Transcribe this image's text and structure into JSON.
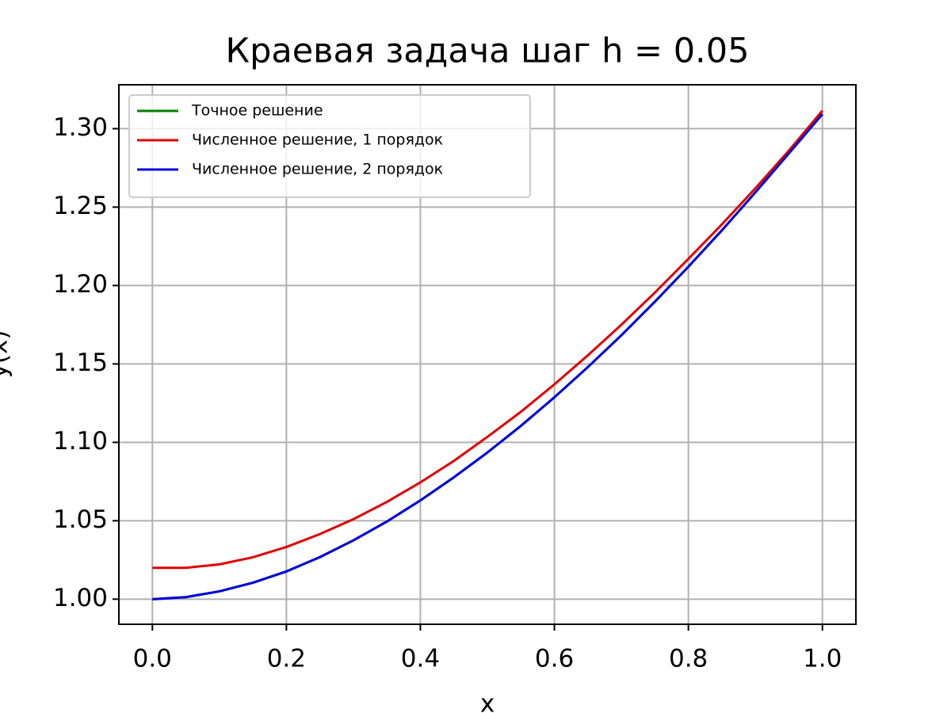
{
  "chart_data": {
    "type": "line",
    "title": "Краевая задача шаг h = 0.05",
    "xlabel": "x",
    "ylabel": "y(x)",
    "x": [
      0,
      0.05,
      0.1,
      0.15,
      0.2,
      0.25,
      0.3,
      0.35,
      0.4,
      0.45,
      0.5,
      0.55,
      0.6,
      0.65,
      0.7,
      0.75,
      0.8,
      0.85,
      0.9,
      0.95,
      1.0
    ],
    "series": [
      {
        "name": "Точное решение",
        "color": "#008000",
        "values": [
          1.0,
          1.0013,
          1.005,
          1.0105,
          1.0177,
          1.0268,
          1.0375,
          1.0495,
          1.063,
          1.0777,
          1.0935,
          1.1105,
          1.1287,
          1.148,
          1.1683,
          1.1897,
          1.212,
          1.2352,
          1.2594,
          1.2843,
          1.3093
        ]
      },
      {
        "name": "Численное решение, 1 порядок",
        "color": "#e00000",
        "values": [
          1.02,
          1.02,
          1.0222,
          1.0267,
          1.0333,
          1.0415,
          1.051,
          1.062,
          1.0745,
          1.0882,
          1.1035,
          1.1195,
          1.137,
          1.1555,
          1.175,
          1.1955,
          1.217,
          1.239,
          1.262,
          1.286,
          1.3115
        ]
      },
      {
        "name": "Численное решение, 2 порядок",
        "color": "#0000e0",
        "values": [
          1.0,
          1.0013,
          1.005,
          1.0105,
          1.0177,
          1.0268,
          1.0375,
          1.0495,
          1.063,
          1.0777,
          1.0935,
          1.1105,
          1.1287,
          1.148,
          1.1683,
          1.1897,
          1.212,
          1.2352,
          1.2594,
          1.2843,
          1.3093
        ]
      }
    ],
    "xlim": [
      -0.05,
      1.05
    ],
    "ylim": [
      0.984,
      1.328
    ],
    "xticks": [
      {
        "value": 0,
        "label": "0.0"
      },
      0.2,
      0.4,
      0.6,
      0.8,
      {
        "value": 1,
        "label": "1.0"
      }
    ],
    "yticks": [
      {
        "value": 1,
        "label": "1.00"
      },
      1.05,
      {
        "value": 1.1,
        "label": "1.10"
      },
      1.15,
      {
        "value": 1.2,
        "label": "1.20"
      },
      1.25,
      {
        "value": 1.3,
        "label": "1.30"
      }
    ],
    "grid": true,
    "legend": "upper left"
  }
}
